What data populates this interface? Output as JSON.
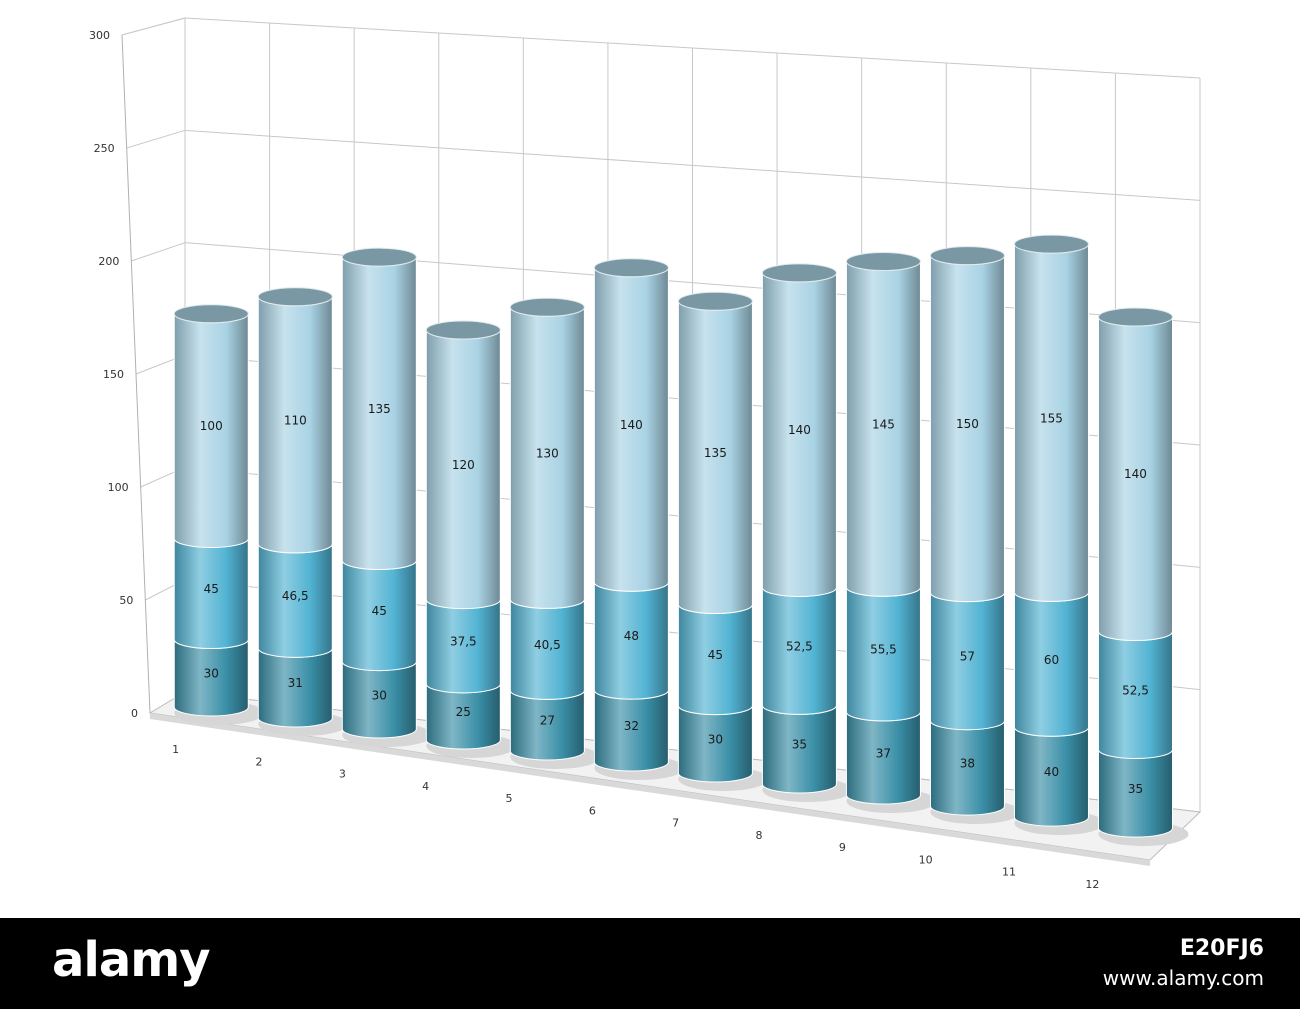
{
  "chart_data": {
    "type": "bar",
    "stacked": true,
    "style": "3d-cylinder",
    "categories": [
      "1",
      "2",
      "3",
      "4",
      "5",
      "6",
      "7",
      "8",
      "9",
      "10",
      "11",
      "12"
    ],
    "series": [
      {
        "values": [
          30,
          31,
          30,
          25,
          27,
          32,
          30,
          35,
          37,
          38,
          40,
          35
        ],
        "labels": [
          "30",
          "31",
          "30",
          "25",
          "27",
          "32",
          "30",
          "35",
          "37",
          "38",
          "40",
          "35"
        ],
        "color": "#3a8fa7"
      },
      {
        "values": [
          45,
          46.5,
          45,
          37.5,
          40.5,
          48,
          45,
          52.5,
          55.5,
          57,
          60,
          52.5
        ],
        "labels": [
          "45",
          "46,5",
          "45",
          "37,5",
          "40,5",
          "48",
          "45",
          "52,5",
          "55,5",
          "57",
          "60",
          "52,5"
        ],
        "color": "#52b3d3"
      },
      {
        "values": [
          100,
          110,
          135,
          120,
          130,
          140,
          135,
          140,
          145,
          150,
          155,
          140
        ],
        "labels": [
          "100",
          "110",
          "135",
          "120",
          "130",
          "140",
          "135",
          "140",
          "145",
          "150",
          "155",
          "140"
        ],
        "color": "#a9d3e4"
      }
    ],
    "yticks": [
      "0",
      "50",
      "100",
      "150",
      "200",
      "250",
      "300"
    ],
    "ylim": [
      0,
      300
    ],
    "grid": true,
    "title": "",
    "xlabel": "",
    "ylabel": ""
  },
  "watermark": {
    "brand": "alamy",
    "image_id": "E20FJ6",
    "site": "www.alamy.com"
  }
}
